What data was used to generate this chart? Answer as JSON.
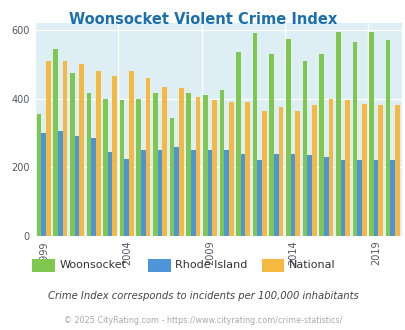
{
  "title": "Woonsocket Violent Crime Index",
  "title_color": "#1a6faf",
  "years": [
    1999,
    2000,
    2001,
    2002,
    2003,
    2004,
    2005,
    2006,
    2007,
    2008,
    2009,
    2010,
    2011,
    2012,
    2013,
    2014,
    2015,
    2016,
    2017,
    2018,
    2019,
    2020
  ],
  "woonsocket": [
    355,
    545,
    475,
    415,
    400,
    395,
    400,
    415,
    345,
    415,
    410,
    425,
    535,
    590,
    530,
    575,
    510,
    530,
    595,
    565,
    595,
    570
  ],
  "rhode_island": [
    300,
    305,
    290,
    285,
    245,
    225,
    250,
    250,
    260,
    250,
    250,
    250,
    240,
    220,
    240,
    240,
    235,
    230,
    220,
    220,
    220,
    220
  ],
  "national": [
    510,
    510,
    500,
    480,
    465,
    480,
    460,
    435,
    430,
    405,
    395,
    390,
    390,
    365,
    375,
    365,
    380,
    400,
    395,
    385,
    380,
    380
  ],
  "woonsocket_color": "#7ec850",
  "rhode_island_color": "#4d94d8",
  "national_color": "#f5b942",
  "bg_color": "#deeef5",
  "ylim": [
    0,
    620
  ],
  "yticks": [
    0,
    200,
    400,
    600
  ],
  "tick_years": [
    1999,
    2004,
    2009,
    2014,
    2019
  ],
  "bar_width": 0.28,
  "note": "Crime Index corresponds to incidents per 100,000 inhabitants",
  "note_color": "#444444",
  "copyright": "© 2025 CityRating.com - https://www.cityrating.com/crime-statistics/",
  "copyright_color": "#aaaaaa",
  "legend_items": [
    "Woonsocket",
    "Rhode Island",
    "National"
  ],
  "fig_width": 4.06,
  "fig_height": 3.3,
  "dpi": 100
}
